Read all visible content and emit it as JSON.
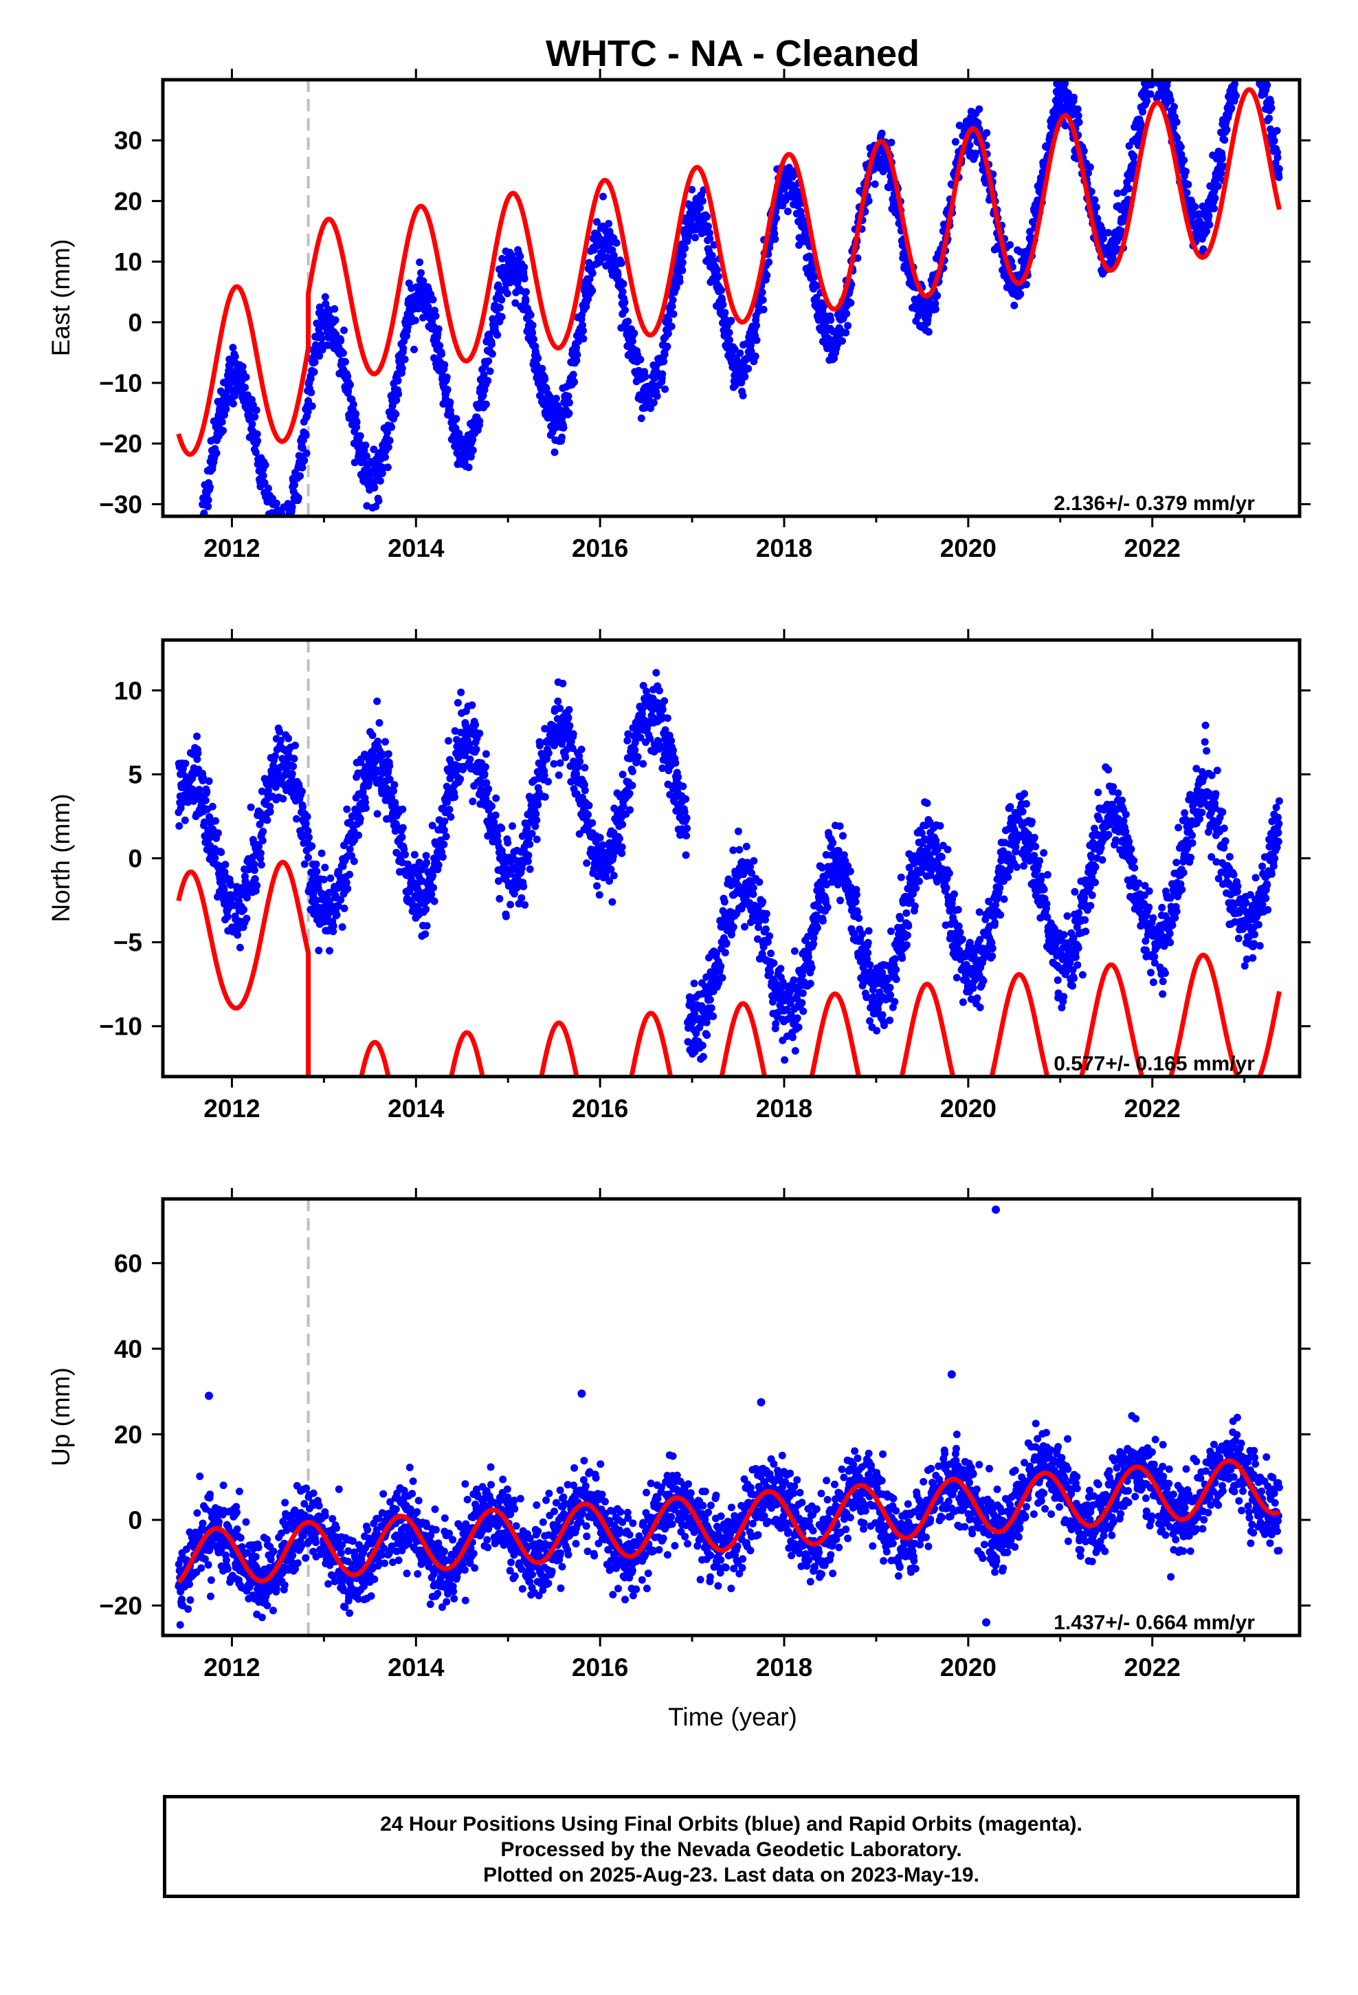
{
  "title": "WHTC  - NA - Cleaned",
  "footer": {
    "line1": "24 Hour Positions Using Final Orbits (blue) and Rapid Orbits (magenta).",
    "line2": "Processed by the Nevada Geodetic Laboratory.",
    "line3": "Plotted on 2025-Aug-23. Last data on 2023-May-19."
  },
  "colors": {
    "points": "#0000ff",
    "model": "#ff0000",
    "event_line": "#bfbfbf",
    "axes": "#000000"
  },
  "chart_data": [
    {
      "type": "scatter",
      "ylabel": "East (mm)",
      "xlabel": "",
      "xlim": [
        2011.25,
        2023.6
      ],
      "ylim": [
        -32,
        40
      ],
      "x_ticks": [
        2012,
        2014,
        2016,
        2018,
        2020,
        2022
      ],
      "y_ticks": [
        -30,
        -20,
        -10,
        0,
        10,
        20,
        30
      ],
      "rate_text": "2.136+/- 0.379 mm/yr",
      "event_line_x": 2012.83,
      "data_range": [
        2011.42,
        2023.38
      ],
      "series": [
        {
          "kind": "points",
          "trend": {
            "t0": 2017.4,
            "value_at_t0": 2.0,
            "slope": 4.6
          },
          "offsets": [
            {
              "t": 2012.83,
              "delta": 4.0
            }
          ],
          "annual_amplitude": 14.0,
          "annual_peak_phase": 0.03,
          "semiannual_amplitude": 0.0,
          "semiannual_peak_phase": 0.0,
          "scatter": 2.0
        },
        {
          "kind": "model",
          "trend": {
            "t0": 2017.4,
            "value_at_t0": 3.5,
            "slope": 2.136
          },
          "offsets": [
            {
              "t": 2012.83,
              "delta": 9.0
            }
          ],
          "annual_amplitude": 13.3,
          "annual_peak_phase": 0.05,
          "semiannual_amplitude": 0.5,
          "semiannual_peak_phase": 0.05,
          "scatter": 0.0
        }
      ]
    },
    {
      "type": "scatter",
      "ylabel": "North (mm)",
      "xlabel": "",
      "xlim": [
        2011.25,
        2023.6
      ],
      "ylim": [
        -13,
        13
      ],
      "x_ticks": [
        2012,
        2014,
        2016,
        2018,
        2020,
        2022
      ],
      "y_ticks": [
        -10,
        -5,
        0,
        5,
        10
      ],
      "rate_text": "0.577+/- 0.165 mm/yr",
      "event_line_x": 2012.83,
      "data_range": [
        2011.42,
        2023.38
      ],
      "series": [
        {
          "kind": "points",
          "trend": {
            "t0": 2014.0,
            "value_at_t0": 3.0,
            "slope": 1.0
          },
          "offsets": [
            {
              "t": 2012.83,
              "delta": -1.0
            },
            {
              "t": 2016.95,
              "delta": -11.0
            }
          ],
          "annual_amplitude": 4.2,
          "annual_peak_phase": 0.55,
          "semiannual_amplitude": 0.0,
          "semiannual_peak_phase": 0.0,
          "scatter": 1.1
        },
        {
          "kind": "model",
          "trend": {
            "t0": 2014.0,
            "value_at_t0": -3.9,
            "slope": 0.577
          },
          "offsets": [
            {
              "t": 2012.83,
              "delta": -11.3
            }
          ],
          "annual_amplitude": 4.2,
          "annual_peak_phase": 0.55,
          "semiannual_amplitude": 0.3,
          "semiannual_peak_phase": 0.55,
          "scatter": 0.0
        }
      ]
    },
    {
      "type": "scatter",
      "ylabel": "Up (mm)",
      "xlabel": "Time (year)",
      "xlim": [
        2011.25,
        2023.6
      ],
      "ylim": [
        -27,
        75
      ],
      "x_ticks": [
        2012,
        2014,
        2016,
        2018,
        2020,
        2022
      ],
      "y_ticks": [
        -20,
        0,
        20,
        40,
        60
      ],
      "rate_text": "1.437+/- 0.664 mm/yr",
      "event_line_x": 2012.83,
      "data_range": [
        2011.42,
        2023.38
      ],
      "series": [
        {
          "kind": "points",
          "trend": {
            "t0": 2017.4,
            "value_at_t0": -0.5,
            "slope": 1.437
          },
          "offsets": [],
          "annual_amplitude": 6.5,
          "annual_peak_phase": 0.83,
          "semiannual_amplitude": 0.0,
          "semiannual_peak_phase": 0.0,
          "scatter": 4.5,
          "outliers": [
            {
              "x": 2020.3,
              "y": 72.5
            },
            {
              "x": 2019.82,
              "y": 34
            },
            {
              "x": 2011.75,
              "y": 29
            },
            {
              "x": 2015.8,
              "y": 29.5
            },
            {
              "x": 2017.75,
              "y": 27.5
            }
          ]
        },
        {
          "kind": "model",
          "trend": {
            "t0": 2017.4,
            "value_at_t0": -0.5,
            "slope": 1.437
          },
          "offsets": [],
          "annual_amplitude": 6.5,
          "annual_peak_phase": 0.83,
          "semiannual_amplitude": 0.0,
          "semiannual_peak_phase": 0.0,
          "scatter": 0.0
        }
      ]
    }
  ]
}
